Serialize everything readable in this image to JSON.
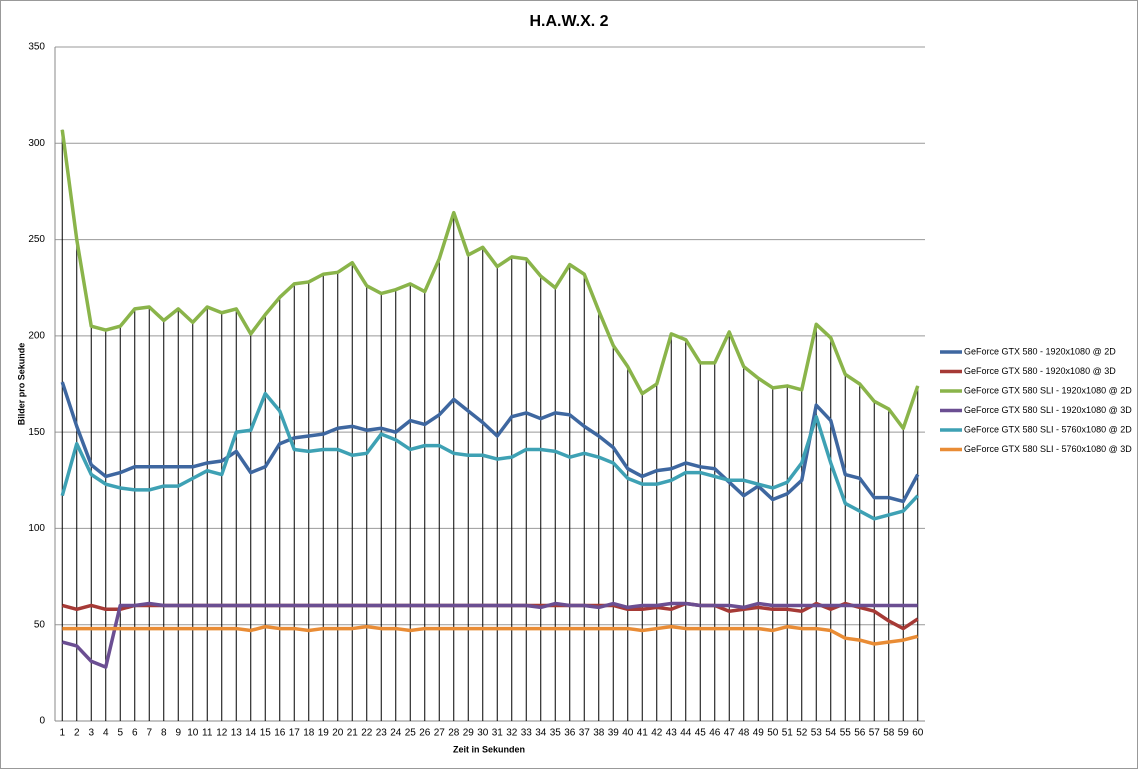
{
  "chart_data": {
    "type": "line",
    "title": "H.A.W.X. 2",
    "x_label": "Zeit in Sekunden",
    "y_label": "Bilder pro Sekunde",
    "categories": [
      1,
      2,
      3,
      4,
      5,
      6,
      7,
      8,
      9,
      10,
      11,
      12,
      13,
      14,
      15,
      16,
      17,
      18,
      19,
      20,
      21,
      22,
      23,
      24,
      25,
      26,
      27,
      28,
      29,
      30,
      31,
      32,
      33,
      34,
      35,
      36,
      37,
      38,
      39,
      40,
      41,
      42,
      43,
      44,
      45,
      46,
      47,
      48,
      49,
      50,
      51,
      52,
      53,
      54,
      55,
      56,
      57,
      58,
      59,
      60
    ],
    "ylim": [
      0,
      350
    ],
    "yticks": [
      0,
      50,
      100,
      150,
      200,
      250,
      300,
      350
    ],
    "grid": true,
    "drop_lines": true,
    "legend": "right",
    "series": [
      {
        "name": "GeForce GTX 580 - 1920x1080 @ 2D",
        "color": "#3e67a0",
        "values": [
          176,
          153,
          133,
          127,
          129,
          132,
          132,
          132,
          132,
          132,
          134,
          135,
          140,
          129,
          132,
          144,
          147,
          148,
          149,
          152,
          153,
          151,
          152,
          150,
          156,
          154,
          159,
          167,
          161,
          155,
          148,
          158,
          160,
          157,
          160,
          159,
          153,
          148,
          142,
          131,
          127,
          130,
          131,
          134,
          132,
          131,
          124,
          117,
          122,
          115,
          118,
          125,
          164,
          156,
          128,
          126,
          116,
          116,
          114,
          128
        ]
      },
      {
        "name": "GeForce GTX 580 - 1920x1080 @ 3D",
        "color": "#a63a36",
        "values": [
          60,
          58,
          60,
          58,
          58,
          60,
          60,
          60,
          60,
          60,
          60,
          60,
          60,
          60,
          60,
          60,
          60,
          60,
          60,
          60,
          60,
          60,
          60,
          60,
          60,
          60,
          60,
          60,
          60,
          60,
          60,
          60,
          60,
          60,
          60,
          60,
          60,
          60,
          60,
          58,
          58,
          59,
          58,
          61,
          60,
          60,
          57,
          58,
          59,
          58,
          58,
          57,
          61,
          58,
          61,
          59,
          57,
          52,
          48,
          53
        ]
      },
      {
        "name": "GeForce GTX 580 SLI - 1920x1080 @ 2D",
        "color": "#8ab44a",
        "values": [
          307,
          250,
          205,
          203,
          205,
          214,
          215,
          208,
          214,
          207,
          215,
          212,
          214,
          201,
          211,
          220,
          227,
          228,
          232,
          233,
          238,
          226,
          222,
          224,
          227,
          223,
          240,
          264,
          242,
          246,
          236,
          241,
          240,
          231,
          225,
          237,
          232,
          213,
          195,
          184,
          170,
          175,
          201,
          198,
          186,
          186,
          202,
          184,
          178,
          173,
          174,
          172,
          206,
          199,
          180,
          175,
          166,
          162,
          152,
          174
        ]
      },
      {
        "name": "GeForce GTX 580 SLI - 1920x1080 @ 3D",
        "color": "#6b4e92",
        "values": [
          41,
          39,
          31,
          28,
          60,
          60,
          61,
          60,
          60,
          60,
          60,
          60,
          60,
          60,
          60,
          60,
          60,
          60,
          60,
          60,
          60,
          60,
          60,
          60,
          60,
          60,
          60,
          60,
          60,
          60,
          60,
          60,
          60,
          59,
          61,
          60,
          60,
          59,
          61,
          59,
          60,
          60,
          61,
          61,
          60,
          60,
          60,
          59,
          61,
          60,
          60,
          60,
          60,
          60,
          60,
          60,
          60,
          60,
          60,
          60
        ]
      },
      {
        "name": "GeForce GTX 580 SLI - 5760x1080 @ 2D",
        "color": "#3ea1b4",
        "values": [
          117,
          144,
          128,
          123,
          121,
          120,
          120,
          122,
          122,
          126,
          130,
          128,
          150,
          151,
          170,
          161,
          141,
          140,
          141,
          141,
          138,
          139,
          149,
          146,
          141,
          143,
          143,
          139,
          138,
          138,
          136,
          137,
          141,
          141,
          140,
          137,
          139,
          137,
          134,
          126,
          123,
          123,
          125,
          129,
          129,
          127,
          125,
          125,
          123,
          121,
          124,
          134,
          158,
          134,
          113,
          109,
          105,
          107,
          109,
          117
        ]
      },
      {
        "name": "GeForce GTX 580 SLI - 5760x1080 @ 3D",
        "color": "#e98c35",
        "values": [
          48,
          48,
          48,
          48,
          48,
          48,
          48,
          48,
          48,
          48,
          48,
          48,
          48,
          47,
          49,
          48,
          48,
          47,
          48,
          48,
          48,
          49,
          48,
          48,
          47,
          48,
          48,
          48,
          48,
          48,
          48,
          48,
          48,
          48,
          48,
          48,
          48,
          48,
          48,
          48,
          47,
          48,
          49,
          48,
          48,
          48,
          48,
          48,
          48,
          47,
          49,
          48,
          48,
          47,
          43,
          42,
          40,
          41,
          42,
          44
        ]
      }
    ]
  }
}
